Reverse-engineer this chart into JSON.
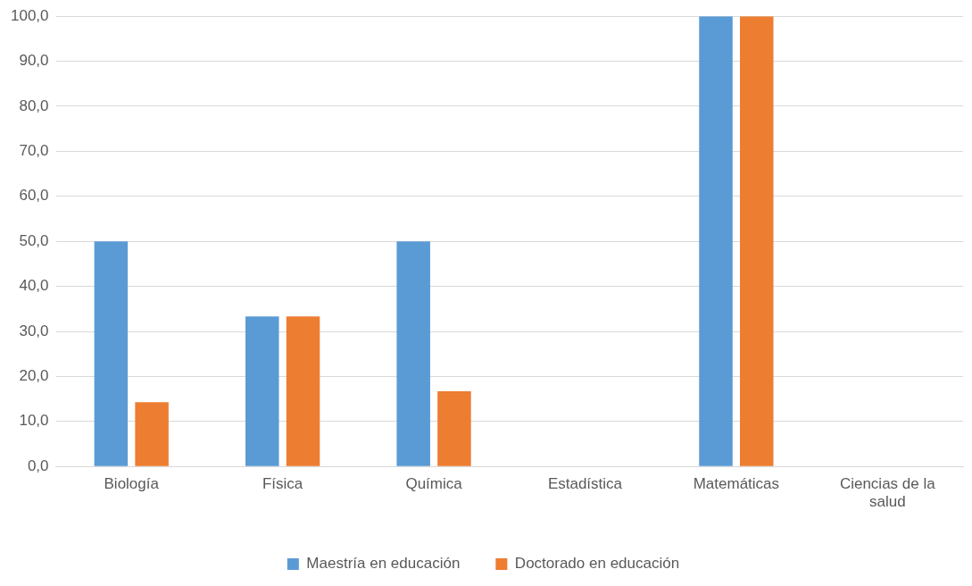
{
  "chart_data": {
    "type": "bar",
    "categories": [
      "Biología",
      "Física",
      "Química",
      "Estadística",
      "Matemáticas",
      "Ciencias de la salud"
    ],
    "series": [
      {
        "name": "Maestría en educación",
        "color": "#5b9bd5",
        "values": [
          50,
          33.3,
          50,
          0,
          100,
          0
        ]
      },
      {
        "name": "Doctorado en educación",
        "color": "#ed7d31",
        "values": [
          14.3,
          33.3,
          16.7,
          0,
          100,
          0
        ]
      }
    ],
    "ylim": [
      0,
      100
    ],
    "yticks": [
      {
        "value": 0,
        "label": "0,0"
      },
      {
        "value": 10,
        "label": "10,0"
      },
      {
        "value": 20,
        "label": "20,0"
      },
      {
        "value": 30,
        "label": "30,0"
      },
      {
        "value": 40,
        "label": "40,0"
      },
      {
        "value": 50,
        "label": "50,0"
      },
      {
        "value": 60,
        "label": "60,0"
      },
      {
        "value": 70,
        "label": "70,0"
      },
      {
        "value": 80,
        "label": "80,0"
      },
      {
        "value": 90,
        "label": "90,0"
      },
      {
        "value": 100,
        "label": "100,0"
      }
    ],
    "grid": "y",
    "legend": "bottom"
  }
}
